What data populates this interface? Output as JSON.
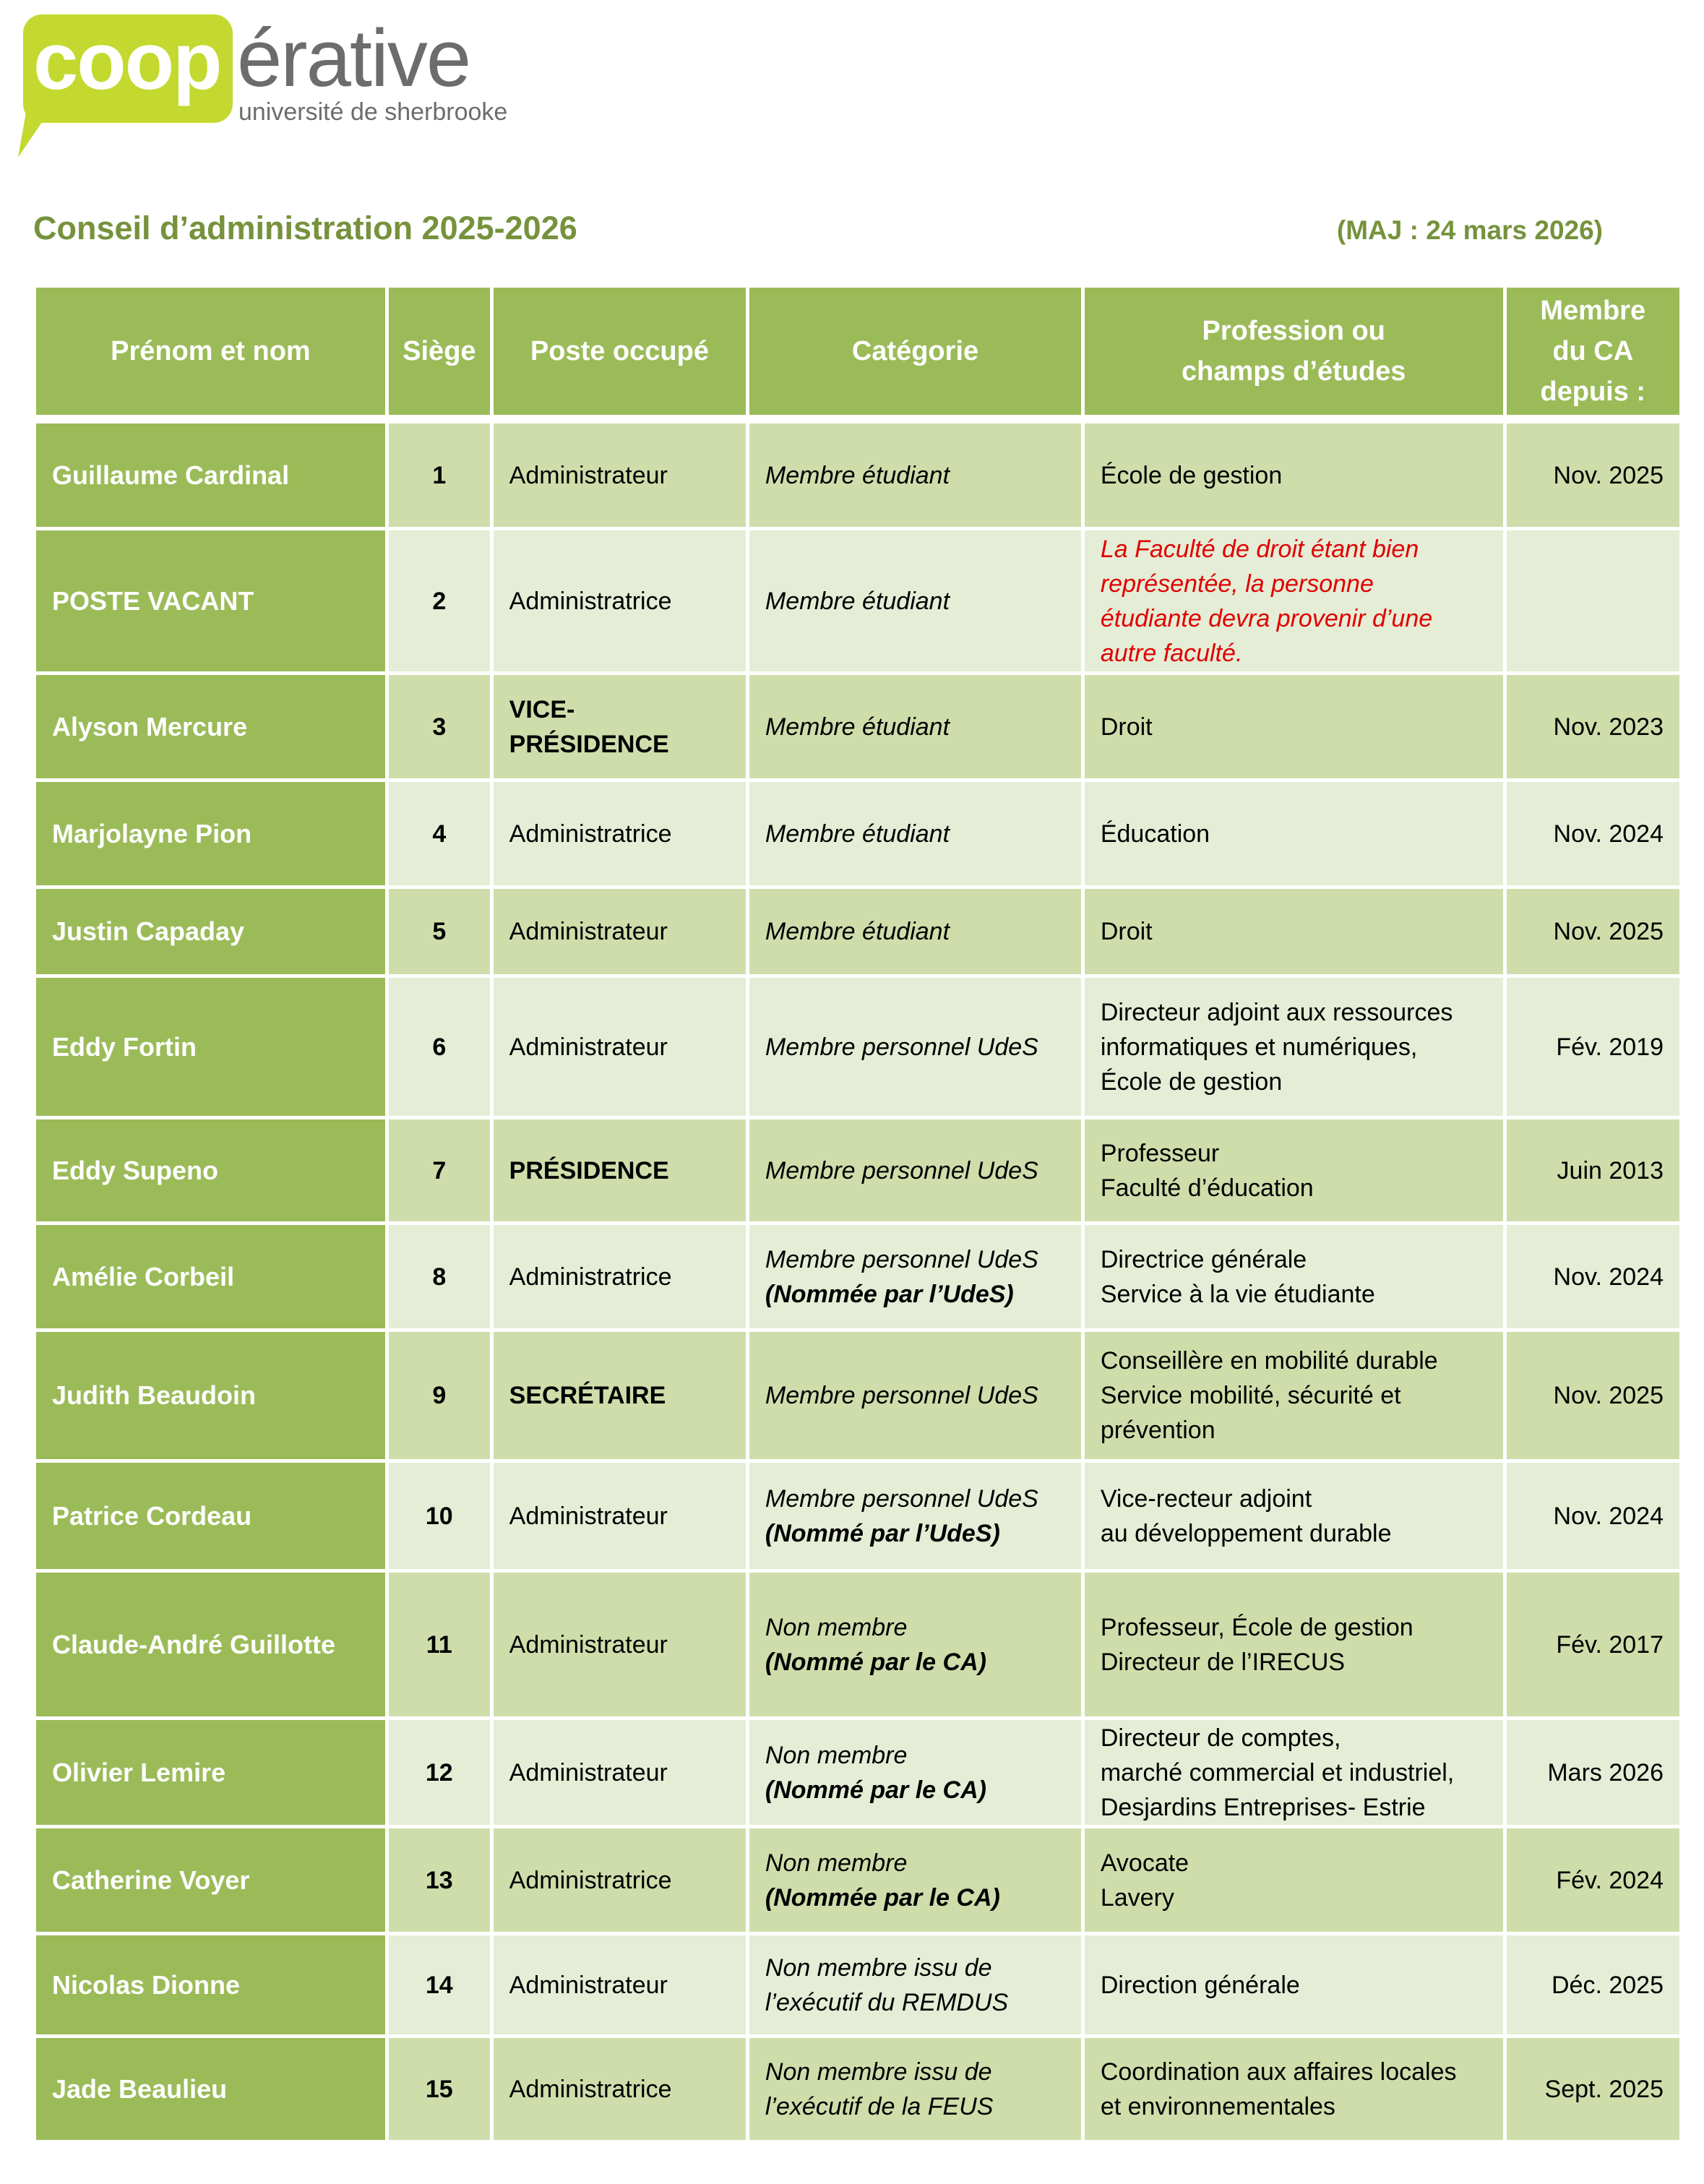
{
  "logo": {
    "part1": "coop",
    "part2": "érative",
    "subtitle": "université de sherbrooke",
    "color": "#c3d92f"
  },
  "title": "Conseil d’administration 2025-2026",
  "update": "(MAJ : 24 mars 2026)",
  "colors": {
    "header": "#9bbb59",
    "row_odd": "#cfddab",
    "row_even": "#e5edd6",
    "title": "#76923c",
    "note": "#e00000"
  },
  "headers": [
    "Prénom et nom",
    "Siège",
    "Poste occupé",
    "Catégorie",
    "Profession ou\nchamps d’études",
    "Membre\ndu CA\ndepuis :"
  ],
  "rows": [
    {
      "name": "Guillaume Cardinal",
      "seat": "1",
      "post": "Administrateur",
      "post_bold": false,
      "category": [
        "Membre étudiant"
      ],
      "profession": [
        "École de gestion"
      ],
      "since": "Nov. 2025"
    },
    {
      "name": "POSTE VACANT",
      "seat": "2",
      "post": "Administratrice",
      "post_bold": false,
      "category": [
        "Membre étudiant"
      ],
      "profession": [
        "La Faculté de droit étant bien",
        "représentée, la personne",
        "étudiante devra provenir d’une",
        "autre faculté."
      ],
      "profession_note": true,
      "since": ""
    },
    {
      "name": "Alyson Mercure",
      "seat": "3",
      "post": "VICE-PRÉSIDENCE",
      "post_bold": true,
      "category": [
        "Membre étudiant"
      ],
      "profession": [
        "Droit"
      ],
      "since": "Nov. 2023"
    },
    {
      "name": "Marjolayne Pion",
      "seat": "4",
      "post": "Administratrice",
      "post_bold": false,
      "category": [
        "Membre étudiant"
      ],
      "profession": [
        "Éducation"
      ],
      "since": "Nov. 2024"
    },
    {
      "name": "Justin Capaday",
      "seat": "5",
      "post": "Administrateur",
      "post_bold": false,
      "category": [
        "Membre étudiant"
      ],
      "profession": [
        "Droit"
      ],
      "since": "Nov. 2025"
    },
    {
      "name": "Eddy Fortin",
      "seat": "6",
      "post": "Administrateur",
      "post_bold": false,
      "category": [
        "Membre personnel UdeS"
      ],
      "profession": [
        "Directeur adjoint aux ressources",
        "informatiques et numériques,",
        "École de gestion"
      ],
      "since": "Fév. 2019"
    },
    {
      "name": "Eddy Supeno",
      "seat": "7",
      "post": "PRÉSIDENCE",
      "post_bold": true,
      "category": [
        "Membre personnel UdeS"
      ],
      "profession": [
        "Professeur",
        "Faculté d’éducation"
      ],
      "since": "Juin 2013"
    },
    {
      "name": "Amélie Corbeil",
      "seat": "8",
      "post": "Administratrice",
      "post_bold": false,
      "category": [
        "Membre personnel UdeS",
        "(Nommée par l’UdeS)"
      ],
      "profession": [
        "Directrice générale",
        "Service à la vie étudiante"
      ],
      "since": "Nov. 2024"
    },
    {
      "name": "Judith Beaudoin",
      "seat": "9",
      "post": "SECRÉTAIRE",
      "post_bold": true,
      "category": [
        "Membre personnel UdeS"
      ],
      "profession": [
        "Conseillère en mobilité durable",
        "Service mobilité, sécurité et",
        "prévention"
      ],
      "since": "Nov. 2025"
    },
    {
      "name": "Patrice Cordeau",
      "seat": "10",
      "post": "Administrateur",
      "post_bold": false,
      "category": [
        "Membre personnel UdeS",
        "(Nommé par l’UdeS)"
      ],
      "profession": [
        "Vice-recteur adjoint",
        "au développement durable"
      ],
      "since": "Nov. 2024"
    },
    {
      "name": "Claude-André Guillotte",
      "seat": "11",
      "post": "Administrateur",
      "post_bold": false,
      "category": [
        "Non membre",
        "(Nommé par le CA)"
      ],
      "profession": [
        "Professeur, École de gestion",
        "Directeur de l’IRECUS"
      ],
      "since": "Fév. 2017"
    },
    {
      "name": "Olivier Lemire",
      "seat": "12",
      "post": "Administrateur",
      "post_bold": false,
      "category": [
        "Non membre",
        "(Nommé par le CA)"
      ],
      "profession": [
        "Directeur de comptes,",
        "marché commercial et industriel,",
        "Desjardins Entreprises- Estrie"
      ],
      "since": "Mars 2026"
    },
    {
      "name": "Catherine Voyer",
      "seat": "13",
      "post": "Administratrice",
      "post_bold": false,
      "category": [
        "Non membre",
        "(Nommée par le CA)"
      ],
      "profession": [
        "Avocate",
        "Lavery"
      ],
      "since": "Fév. 2024"
    },
    {
      "name": "Nicolas Dionne",
      "seat": "14",
      "post": "Administrateur",
      "post_bold": false,
      "category": [
        "Non membre issu de",
        "l’exécutif du REMDUS"
      ],
      "category_plain": true,
      "profession": [
        "Direction générale"
      ],
      "since": "Déc. 2025"
    },
    {
      "name": "Jade Beaulieu",
      "seat": "15",
      "post": "Administratrice",
      "post_bold": false,
      "category": [
        "Non membre issu de",
        "l’exécutif de la FEUS"
      ],
      "category_plain": true,
      "profession": [
        "Coordination aux affaires locales",
        "et environnementales"
      ],
      "since": "Sept. 2025"
    }
  ]
}
